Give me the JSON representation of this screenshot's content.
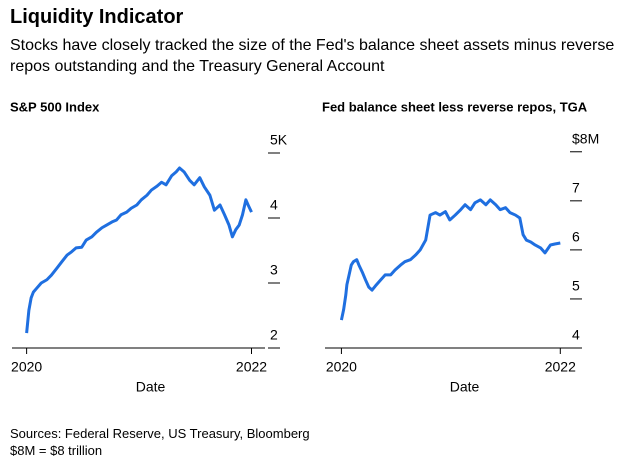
{
  "title": "Liquidity Indicator",
  "subtitle": "Stocks have closely tracked the size of the Fed's balance sheet assets minus reverse repos outstanding and the Treasury General Account",
  "notes": [
    "Sources: Federal Reserve, US Treasury, Bloomberg",
    "$8M = $8 trillion"
  ],
  "chart_data": [
    {
      "type": "line",
      "title": "S&P 500 Index",
      "xlabel": "Date",
      "color": "#1f6fe0",
      "x": [
        2020.0,
        2020.02,
        2020.04,
        2020.06,
        2020.09,
        2020.13,
        2020.18,
        2020.22,
        2020.27,
        2020.31,
        2020.36,
        2020.4,
        2020.44,
        2020.49,
        2020.53,
        2020.58,
        2020.62,
        2020.67,
        2020.71,
        2020.76,
        2020.8,
        2020.84,
        2020.89,
        2020.93,
        2020.98,
        2021.02,
        2021.07,
        2021.11,
        2021.16,
        2021.2,
        2021.24,
        2021.29,
        2021.33,
        2021.36,
        2021.4,
        2021.45,
        2021.49,
        2021.54,
        2021.58,
        2021.63,
        2021.67,
        2021.72,
        2021.76,
        2021.8,
        2021.83,
        2021.86,
        2021.89,
        2021.92,
        2021.95,
        2021.97,
        2022.0
      ],
      "values": [
        2.23,
        2.58,
        2.77,
        2.86,
        2.92,
        3.0,
        3.05,
        3.12,
        3.23,
        3.32,
        3.43,
        3.48,
        3.54,
        3.55,
        3.66,
        3.71,
        3.78,
        3.85,
        3.89,
        3.94,
        3.97,
        4.05,
        4.09,
        4.15,
        4.2,
        4.28,
        4.35,
        4.43,
        4.49,
        4.55,
        4.51,
        4.65,
        4.71,
        4.77,
        4.71,
        4.58,
        4.51,
        4.62,
        4.48,
        4.35,
        4.12,
        4.2,
        4.05,
        3.89,
        3.71,
        3.82,
        3.89,
        4.05,
        4.28,
        4.2,
        4.09
      ],
      "xlim": [
        2019.87,
        2022.12
      ],
      "xticks": [
        2020,
        2022
      ],
      "ylim": [
        2,
        5.2
      ],
      "yticks": [
        2,
        3,
        4,
        {
          "value": 5,
          "label": "5K"
        }
      ]
    },
    {
      "type": "line",
      "title": "Fed balance sheet less reverse repos, TGA",
      "xlabel": "Date",
      "color": "#1f6fe0",
      "x": [
        2020.0,
        2020.02,
        2020.04,
        2020.05,
        2020.07,
        2020.09,
        2020.11,
        2020.14,
        2020.16,
        2020.19,
        2020.22,
        2020.25,
        2020.28,
        2020.32,
        2020.36,
        2020.4,
        2020.45,
        2020.49,
        2020.54,
        2020.58,
        2020.63,
        2020.68,
        2020.72,
        2020.77,
        2020.81,
        2020.86,
        2020.9,
        2020.95,
        2020.99,
        2021.04,
        2021.09,
        2021.13,
        2021.18,
        2021.22,
        2021.27,
        2021.32,
        2021.36,
        2021.41,
        2021.45,
        2021.5,
        2021.54,
        2021.59,
        2021.63,
        2021.66,
        2021.69,
        2021.73,
        2021.77,
        2021.82,
        2021.86,
        2021.91,
        2021.95,
        2022.0
      ],
      "values": [
        4.57,
        4.78,
        5.08,
        5.29,
        5.49,
        5.69,
        5.76,
        5.8,
        5.69,
        5.55,
        5.39,
        5.24,
        5.18,
        5.29,
        5.39,
        5.49,
        5.49,
        5.59,
        5.69,
        5.76,
        5.8,
        5.9,
        6.0,
        6.2,
        6.71,
        6.76,
        6.71,
        6.78,
        6.61,
        6.71,
        6.82,
        6.92,
        6.82,
        6.96,
        7.02,
        6.92,
        7.02,
        6.92,
        6.82,
        6.86,
        6.76,
        6.71,
        6.65,
        6.31,
        6.2,
        6.16,
        6.1,
        6.04,
        5.94,
        6.1,
        6.12,
        6.14
      ],
      "xlim": [
        2019.85,
        2022.18
      ],
      "xticks": [
        2020,
        2022
      ],
      "ylim": [
        4,
        8.24
      ],
      "yticks": [
        4,
        5,
        6,
        7,
        {
          "value": 8,
          "label": "$8M"
        }
      ]
    }
  ]
}
